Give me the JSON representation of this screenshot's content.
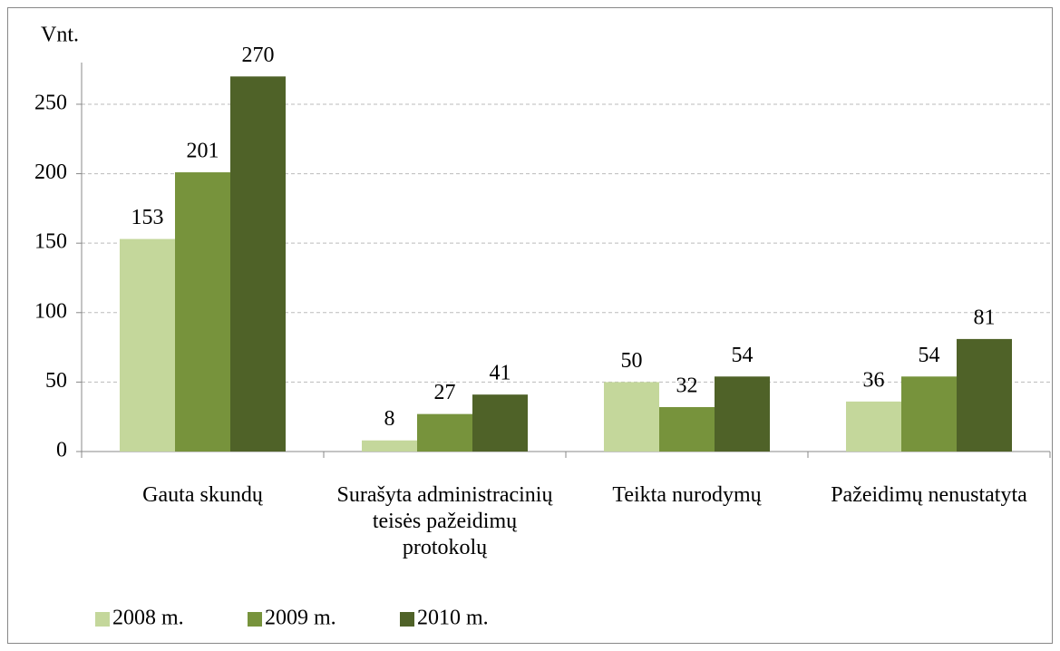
{
  "chart_data": {
    "type": "bar",
    "y_label": "Vnt.",
    "categories": [
      "Gauta skundų",
      "Surašyta administracinių teisės pažeidimų protokolų",
      "Teikta nurodymų",
      "Pažeidimų nenustatyta"
    ],
    "series": [
      {
        "name": "2008 m.",
        "color": "#c4d79b",
        "values": [
          153,
          8,
          50,
          36
        ]
      },
      {
        "name": "2009 m.",
        "color": "#77933c",
        "values": [
          201,
          27,
          32,
          54
        ]
      },
      {
        "name": "2010 m.",
        "color": "#4f6228",
        "values": [
          270,
          41,
          54,
          81
        ]
      }
    ],
    "ylim": [
      0,
      280
    ],
    "yticks": [
      0,
      50,
      100,
      150,
      200,
      250
    ],
    "grid": true,
    "legend": "bottom"
  }
}
